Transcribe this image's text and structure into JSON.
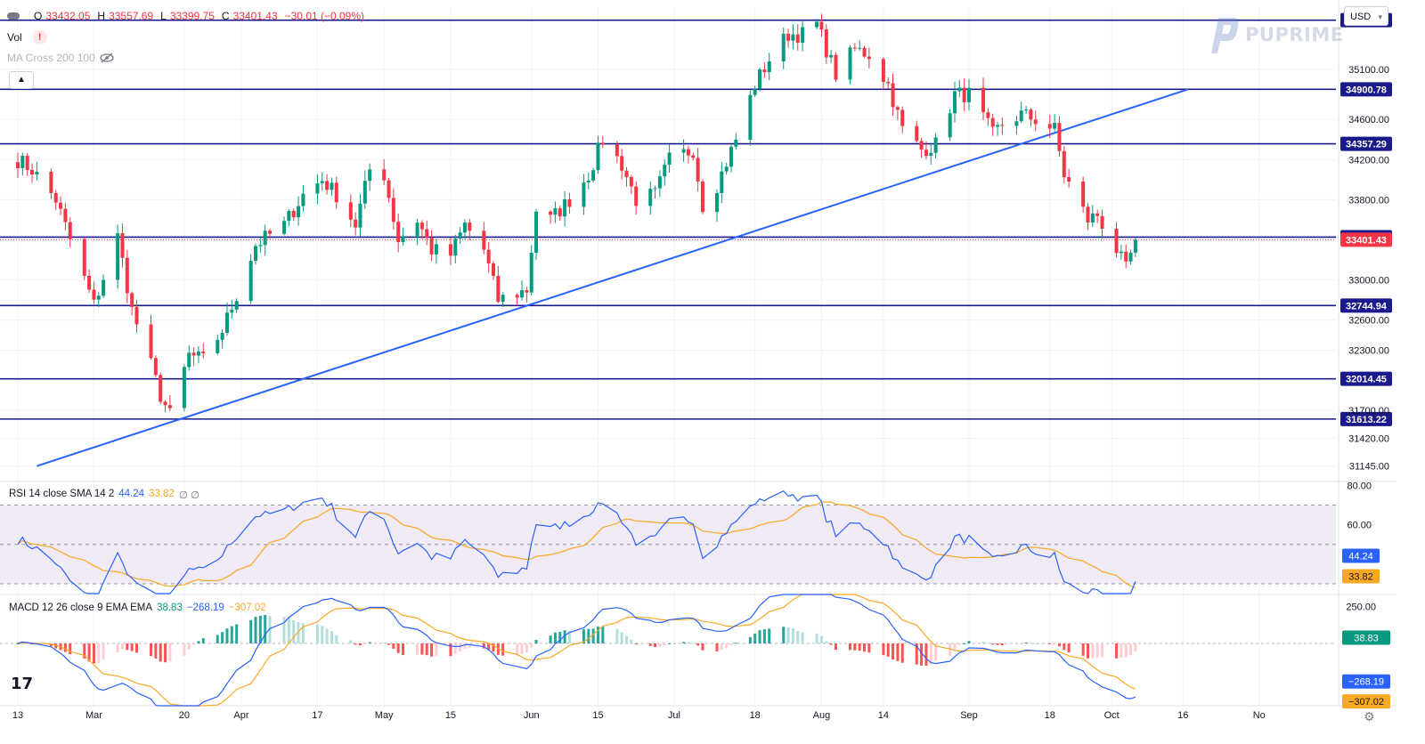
{
  "header": {
    "ohlc": [
      {
        "label": "O",
        "value": "33432.05"
      },
      {
        "label": "H",
        "value": "33557.69"
      },
      {
        "label": "L",
        "value": "33399.75"
      },
      {
        "label": "C",
        "value": "33401.43"
      }
    ],
    "change": "−30.01 (−0.09%)",
    "vol_label": "Vol",
    "vol_alert": "!",
    "ma_label": "MA Cross 200 100",
    "currency": "USD",
    "brand": "PUPRIME",
    "tv_logo": "17"
  },
  "chart_data": {
    "type": "candlestick",
    "series_points": 190,
    "y_axis": {
      "ticks": [
        35100.0,
        34600.0,
        34200.0,
        33800.0,
        33000.0,
        32600.0,
        32300.0,
        31700.0,
        31420.0,
        31145.0
      ],
      "tick_labels": [
        "35100.00",
        "34600.00",
        "34200.00",
        "33800.00",
        "33000.00",
        "32600.00",
        "32300.00",
        "31700.00",
        "31420.00",
        "31145.00"
      ],
      "range": [
        31000,
        35720
      ]
    },
    "x_axis": {
      "labels": [
        "13",
        "Mar",
        "20",
        "Apr",
        "17",
        "May",
        "15",
        "Jun",
        "15",
        "Jul",
        "18",
        "Aug",
        "14",
        "Sep",
        "18",
        "Oct",
        "16",
        "No"
      ],
      "label_dates": [
        "2023-02-13",
        "2023-03-01",
        "2023-03-20",
        "2023-04-01",
        "2023-04-17",
        "2023-05-01",
        "2023-05-15",
        "2023-06-01",
        "2023-06-15",
        "2023-07-01",
        "2023-07-18",
        "2023-08-01",
        "2023-08-14",
        "2023-09-01",
        "2023-09-18",
        "2023-10-01",
        "2023-10-16",
        "2023-11-01"
      ]
    },
    "anchors": [
      {
        "date": "2023-02-13",
        "close": 34200
      },
      {
        "date": "2023-02-16",
        "close": 34100
      },
      {
        "date": "2023-02-21",
        "close": 33800
      },
      {
        "date": "2023-02-24",
        "close": 33400
      },
      {
        "date": "2023-03-01",
        "close": 32750
      },
      {
        "date": "2023-03-06",
        "close": 33430
      },
      {
        "date": "2023-03-09",
        "close": 32700
      },
      {
        "date": "2023-03-13",
        "close": 32150
      },
      {
        "date": "2023-03-15",
        "close": 31850
      },
      {
        "date": "2023-03-17",
        "close": 31650
      },
      {
        "date": "2023-03-21",
        "close": 32250
      },
      {
        "date": "2023-03-24",
        "close": 32200
      },
      {
        "date": "2023-03-28",
        "close": 32500
      },
      {
        "date": "2023-03-31",
        "close": 32850
      },
      {
        "date": "2023-04-04",
        "close": 33350
      },
      {
        "date": "2023-04-10",
        "close": 33550
      },
      {
        "date": "2023-04-14",
        "close": 33850
      },
      {
        "date": "2023-04-18",
        "close": 34000
      },
      {
        "date": "2023-04-21",
        "close": 33850
      },
      {
        "date": "2023-04-25",
        "close": 33550
      },
      {
        "date": "2023-04-28",
        "close": 34100
      },
      {
        "date": "2023-05-01",
        "close": 34050
      },
      {
        "date": "2023-05-04",
        "close": 33400
      },
      {
        "date": "2023-05-08",
        "close": 33600
      },
      {
        "date": "2023-05-11",
        "close": 33300
      },
      {
        "date": "2023-05-15",
        "close": 33250
      },
      {
        "date": "2023-05-18",
        "close": 33550
      },
      {
        "date": "2023-05-22",
        "close": 33300
      },
      {
        "date": "2023-05-25",
        "close": 32800
      },
      {
        "date": "2023-05-31",
        "close": 32900
      },
      {
        "date": "2023-06-02",
        "close": 33700
      },
      {
        "date": "2023-06-05",
        "close": 33600
      },
      {
        "date": "2023-06-09",
        "close": 33800
      },
      {
        "date": "2023-06-13",
        "close": 34050
      },
      {
        "date": "2023-06-16",
        "close": 34400
      },
      {
        "date": "2023-06-20",
        "close": 34150
      },
      {
        "date": "2023-06-23",
        "close": 33800
      },
      {
        "date": "2023-06-27",
        "close": 33850
      },
      {
        "date": "2023-06-30",
        "close": 34200
      },
      {
        "date": "2023-07-05",
        "close": 34300
      },
      {
        "date": "2023-07-07",
        "close": 33750
      },
      {
        "date": "2023-07-10",
        "close": 33950
      },
      {
        "date": "2023-07-14",
        "close": 34400
      },
      {
        "date": "2023-07-18",
        "close": 34950
      },
      {
        "date": "2023-07-21",
        "close": 35200
      },
      {
        "date": "2023-07-25",
        "close": 35450
      },
      {
        "date": "2023-07-28",
        "close": 35450
      },
      {
        "date": "2023-07-31",
        "close": 35550
      },
      {
        "date": "2023-08-02",
        "close": 35300
      },
      {
        "date": "2023-08-04",
        "close": 35050
      },
      {
        "date": "2023-08-08",
        "close": 35300
      },
      {
        "date": "2023-08-11",
        "close": 35250
      },
      {
        "date": "2023-08-15",
        "close": 34950
      },
      {
        "date": "2023-08-18",
        "close": 34500
      },
      {
        "date": "2023-08-22",
        "close": 34300
      },
      {
        "date": "2023-08-25",
        "close": 34350
      },
      {
        "date": "2023-08-29",
        "close": 34850
      },
      {
        "date": "2023-09-01",
        "close": 34850
      },
      {
        "date": "2023-09-06",
        "close": 34450
      },
      {
        "date": "2023-09-08",
        "close": 34550
      },
      {
        "date": "2023-09-12",
        "close": 34650
      },
      {
        "date": "2023-09-15",
        "close": 34600
      },
      {
        "date": "2023-09-19",
        "close": 34500
      },
      {
        "date": "2023-09-21",
        "close": 34050
      },
      {
        "date": "2023-09-26",
        "close": 33600
      },
      {
        "date": "2023-09-28",
        "close": 33650
      },
      {
        "date": "2023-10-02",
        "close": 33300
      },
      {
        "date": "2023-10-04",
        "close": 33100
      },
      {
        "date": "2023-10-06",
        "close": 33400
      }
    ],
    "horizontal_levels": [
      {
        "value": 35589.99,
        "label": "35589.99"
      },
      {
        "value": 34900.78,
        "label": "34900.78"
      },
      {
        "value": 34357.29,
        "label": "34357.29"
      },
      {
        "value": 33426.84,
        "label": "33426.84"
      },
      {
        "value": 32744.94,
        "label": "32744.94"
      },
      {
        "value": 32014.45,
        "label": "32014.45"
      },
      {
        "value": 31613.22,
        "label": "31613.22"
      }
    ],
    "last_price": {
      "value": 33401.43,
      "label": "33401.43"
    },
    "trendline": {
      "from": {
        "date": "2023-02-17",
        "value": 31145
      },
      "to": {
        "date": "2023-10-17",
        "value": 34900
      }
    },
    "colors": {
      "up": "#089981",
      "down": "#f23645",
      "level": "#1a1a8c",
      "trend": "#2962ff",
      "rsi": "#2962ff",
      "rsi_ma": "#f9a825",
      "macd": "#2962ff",
      "signal": "#f9a825"
    },
    "rsi": {
      "legend": "RSI 14 close SMA 14 2",
      "value": "44.24",
      "sma": "33.82",
      "extra": "∅ ∅",
      "levels": [
        70,
        50,
        30
      ],
      "ticks": [
        "80.00",
        "60.00"
      ],
      "range": [
        25,
        82
      ]
    },
    "macd": {
      "legend": "MACD 12 26 close 9 EMA EMA",
      "hist": "38.83",
      "macd": "−268.19",
      "signal": "−307.02",
      "ticks": [
        "250.00"
      ],
      "range": [
        -420,
        330
      ]
    }
  }
}
